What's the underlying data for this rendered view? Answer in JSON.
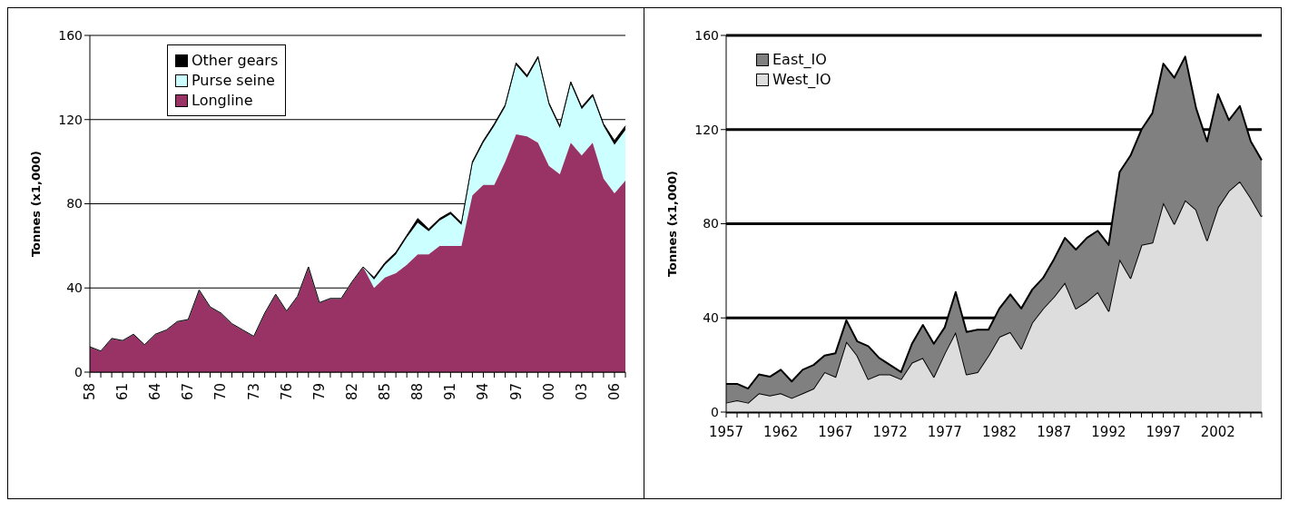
{
  "chart_data": [
    {
      "type": "area",
      "stacked": true,
      "ylabel": "Tonnes (x1,000)",
      "categories": [
        "58",
        null,
        null,
        "61",
        null,
        null,
        "64",
        null,
        null,
        "67",
        null,
        null,
        "70",
        null,
        null,
        "73",
        null,
        null,
        "76",
        null,
        null,
        "79",
        null,
        null,
        "82",
        null,
        null,
        "85",
        null,
        null,
        "88",
        null,
        null,
        "91",
        null,
        null,
        "94",
        null,
        null,
        "97",
        null,
        null,
        "00",
        null,
        null,
        "03",
        null,
        null,
        "06",
        null
      ],
      "series": [
        {
          "name": "Longline",
          "color": "#993366",
          "values": [
            12,
            10,
            16,
            15,
            18,
            13,
            18,
            20,
            24,
            25,
            39,
            31,
            28,
            23,
            20,
            17,
            28,
            37,
            29,
            36,
            50,
            33,
            35,
            35,
            43,
            50,
            40,
            45,
            47,
            51,
            56,
            56,
            60,
            60,
            60,
            84,
            89,
            89,
            100,
            113,
            112,
            109,
            98,
            94,
            109,
            103,
            109,
            92,
            85,
            91
          ]
        },
        {
          "name": "Purse seine",
          "color": "#ccffff",
          "values": [
            0,
            0,
            0,
            0,
            0,
            0,
            0,
            0,
            0,
            0,
            0,
            0,
            0,
            0,
            0,
            0,
            0,
            0,
            0,
            0,
            0,
            0,
            0,
            0,
            0,
            0,
            4,
            6,
            9,
            13,
            15,
            11,
            12,
            15,
            10,
            15,
            20,
            28,
            26,
            33,
            28,
            40,
            29,
            22,
            28,
            22,
            22,
            25,
            23,
            24
          ]
        },
        {
          "name": "Other gears",
          "color": "#000000",
          "values": [
            0,
            0,
            0,
            0,
            0,
            0,
            0,
            0,
            0,
            0,
            0,
            0,
            0,
            0,
            0,
            0,
            0,
            0,
            0,
            0,
            0,
            0,
            0,
            0,
            0,
            0,
            1,
            1,
            1,
            1,
            2,
            1,
            1,
            1,
            1,
            1,
            1,
            1,
            1,
            1,
            1,
            1,
            1,
            1,
            1,
            1,
            1,
            1,
            2,
            2
          ]
        }
      ],
      "ylim": [
        0,
        160
      ],
      "yticks": [
        0,
        40,
        80,
        120,
        160
      ],
      "grid": "y",
      "legend": "top left"
    },
    {
      "type": "area",
      "stacked": true,
      "ylabel": "Tonnes (x1,000)",
      "categories": [
        "1957",
        null,
        null,
        null,
        null,
        "1962",
        null,
        null,
        null,
        null,
        "1967",
        null,
        null,
        null,
        null,
        "1972",
        null,
        null,
        null,
        null,
        "1977",
        null,
        null,
        null,
        null,
        "1982",
        null,
        null,
        null,
        null,
        "1987",
        null,
        null,
        null,
        null,
        "1992",
        null,
        null,
        null,
        null,
        "1997",
        null,
        null,
        null,
        null,
        "2002",
        null,
        null,
        null,
        null
      ],
      "series": [
        {
          "name": "West_IO",
          "color": "#dddddd",
          "values": [
            4,
            5,
            4,
            8,
            7,
            8,
            6,
            8,
            10,
            17,
            15,
            30,
            24,
            14,
            16,
            16,
            14,
            21,
            23,
            15,
            25,
            34,
            16,
            17,
            24,
            32,
            34,
            27,
            38,
            44,
            49,
            55,
            44,
            47,
            51,
            43,
            65,
            57,
            71,
            72,
            89,
            80,
            90,
            86,
            73,
            87,
            94,
            98,
            91,
            83
          ]
        },
        {
          "name": "East_IO",
          "color": "#808080",
          "values": [
            8,
            7,
            6,
            8,
            8,
            10,
            7,
            10,
            10,
            7,
            10,
            9,
            6,
            14,
            7,
            4,
            3,
            8,
            14,
            14,
            11,
            17,
            18,
            18,
            11,
            12,
            16,
            17,
            14,
            13,
            16,
            19,
            25,
            27,
            26,
            28,
            37,
            52,
            49,
            55,
            59,
            62,
            61,
            43,
            42,
            48,
            30,
            32,
            24,
            24
          ]
        }
      ],
      "ylim": [
        0,
        160
      ],
      "yticks": [
        0,
        40,
        80,
        120,
        160
      ],
      "grid": "y",
      "legend": "top left"
    }
  ]
}
